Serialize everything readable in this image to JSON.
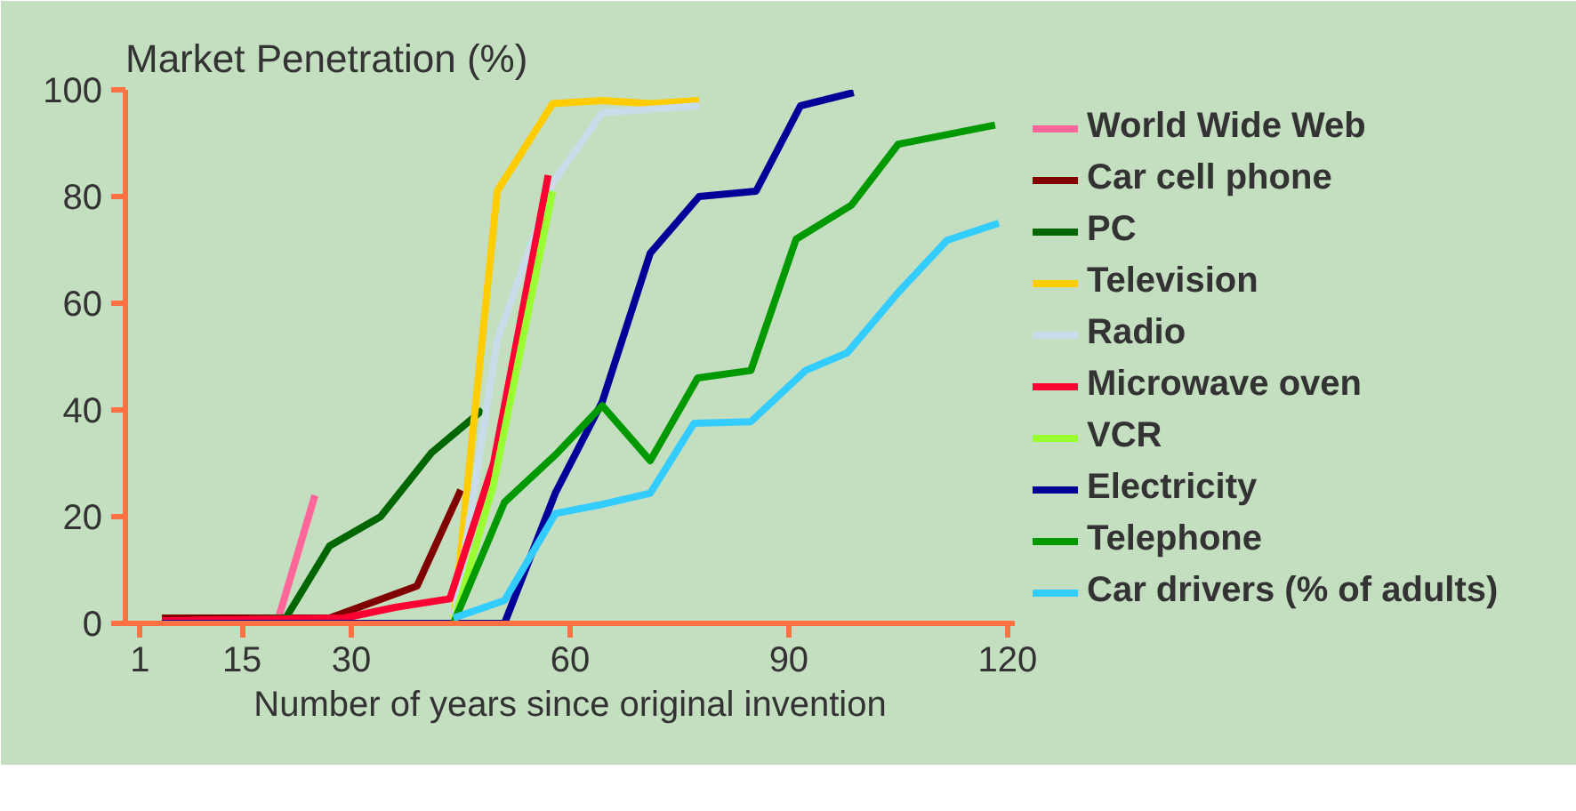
{
  "chart_data": {
    "type": "line",
    "title": "Market Penetration (%)",
    "xlabel": "Number of years since original invention",
    "xlim": [
      -1,
      121
    ],
    "xticks": [
      1,
      15,
      30,
      60,
      90,
      120
    ],
    "ylim": [
      0,
      100
    ],
    "yticks": [
      0,
      20,
      40,
      60,
      80,
      100
    ],
    "grid": false,
    "legend": "right",
    "line_style": "solid",
    "marker": "none",
    "series": [
      {
        "name": "World Wide Web",
        "color": "#ff6699",
        "x": [
          20,
          25
        ],
        "values": [
          1,
          24
        ]
      },
      {
        "name": "Car cell phone",
        "color": "#800000",
        "x": [
          4,
          20,
          27,
          33,
          39,
          45
        ],
        "values": [
          1,
          1,
          1,
          4,
          7,
          25
        ]
      },
      {
        "name": "PC",
        "color": "#006600",
        "x": [
          4,
          21,
          27,
          34,
          41,
          48
        ],
        "values": [
          0,
          1,
          14.5,
          20,
          32,
          40
        ]
      },
      {
        "name": "Television",
        "color": "#ffcc00",
        "x": [
          4,
          44,
          50,
          57.6,
          64.4,
          71,
          77.7
        ],
        "values": [
          0,
          0,
          81,
          97.4,
          98,
          97.4,
          98
        ]
      },
      {
        "name": "Radio",
        "color": "#c8dcea",
        "x": [
          44,
          50,
          57.6,
          64.4,
          77.7
        ],
        "values": [
          0,
          53,
          82.5,
          95.7,
          97
        ]
      },
      {
        "name": "Microwave oven",
        "color": "#ff0033",
        "x": [
          4,
          29,
          36,
          43.5,
          49.5,
          57
        ],
        "values": [
          0.5,
          1,
          3,
          4.6,
          30,
          84
        ]
      },
      {
        "name": "VCR",
        "color": "#99ff33",
        "x": [
          44,
          49.5,
          57.6
        ],
        "values": [
          0,
          26,
          81
        ]
      },
      {
        "name": "Electricity",
        "color": "#000099",
        "x": [
          4,
          51,
          58,
          64.4,
          71,
          77.7,
          85.5,
          91.6,
          98.9
        ],
        "values": [
          0,
          0,
          24.5,
          41.5,
          69.4,
          80,
          81,
          97,
          99.5
        ]
      },
      {
        "name": "Telephone",
        "color": "#009900",
        "x": [
          44,
          51,
          58,
          64.4,
          71,
          77.5,
          84.8,
          91,
          98.6,
          105,
          118.3
        ],
        "values": [
          0,
          22.7,
          31.6,
          40.8,
          30.5,
          46,
          47.4,
          72,
          78.4,
          89.8,
          93.4
        ]
      },
      {
        "name": "Car drivers (% of adults)",
        "color": "#33ccff",
        "x": [
          44,
          51,
          58,
          64.4,
          71,
          77,
          84.8,
          92.3,
          98,
          105,
          111.7,
          118.8
        ],
        "values": [
          1,
          4.3,
          20.6,
          22.3,
          24.4,
          37.5,
          37.8,
          47.4,
          50.7,
          62,
          71.8,
          75
        ]
      }
    ]
  }
}
